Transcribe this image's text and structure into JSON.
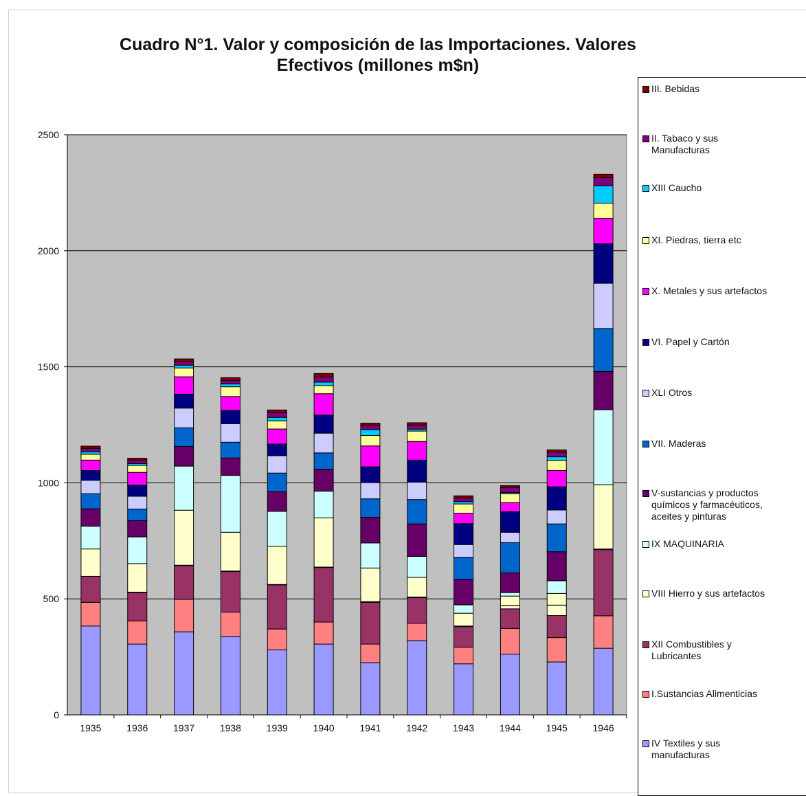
{
  "chart_data": {
    "type": "bar",
    "stacked": true,
    "title": "Cuadro N°1. Valor y composición de las Importaciones. Valores Efectivos (millones m$n)",
    "title_lines": [
      "Cuadro N°1. Valor y composición de las Importaciones. Valores",
      "Efectivos (millones m$n)"
    ],
    "categories": [
      "1935",
      "1936",
      "1937",
      "1938",
      "1939",
      "1940",
      "1941",
      "1942",
      "1943",
      "1944",
      "1945",
      "1946"
    ],
    "ylim": [
      0,
      2500
    ],
    "yticks": [
      "0",
      "500",
      "1000",
      "1500",
      "2000",
      "2500"
    ],
    "grid": true,
    "legend_placement": "right",
    "plot_background": "#c0c0c0",
    "series": [
      {
        "name": "IV Textiles y sus\nmanufacturas",
        "color": "#9999ff",
        "values": [
          383,
          305,
          358,
          338,
          280,
          305,
          225,
          320,
          220,
          262,
          228,
          287
        ]
      },
      {
        "name": "I.Sustancias Alimenticias",
        "color": "#ff8080",
        "values": [
          102,
          100,
          140,
          105,
          90,
          95,
          80,
          75,
          72,
          110,
          105,
          140
        ]
      },
      {
        "name": "XII Combustibles y\nLubricantes",
        "color": "#993366",
        "values": [
          112,
          122,
          145,
          175,
          190,
          235,
          180,
          110,
          88,
          85,
          95,
          285
        ]
      },
      {
        "name": "VIII Hierro y sus artefactos",
        "color": "#ffffcc",
        "values": [
          0,
          2,
          2,
          2,
          2,
          2,
          3,
          3,
          3,
          15,
          45,
          3
        ]
      },
      {
        "name": "IX MAQUINARIA",
        "color": "#ffffcc",
        "values": [
          118,
          123,
          237,
          167,
          165,
          212,
          145,
          85,
          55,
          40,
          50,
          277
        ]
      },
      {
        "name": "V-sustancias y productos\nquímicos y farmacéuticos,\naceites y pinturas",
        "color": "#ccffff",
        "values": [
          98,
          115,
          190,
          245,
          150,
          115,
          108,
          90,
          36,
          15,
          55,
          323
        ]
      },
      {
        "name": "VII. Maderas",
        "color": "#660066",
        "values": [
          75,
          70,
          85,
          75,
          85,
          95,
          110,
          140,
          110,
          85,
          125,
          165
        ]
      },
      {
        "name": "XLI Otros",
        "color": "#0066cc",
        "values": [
          65,
          50,
          80,
          68,
          80,
          70,
          80,
          105,
          95,
          130,
          120,
          185
        ]
      },
      {
        "name": "VI. Papel y Cartón",
        "color": "#ccccff",
        "values": [
          58,
          55,
          85,
          80,
          75,
          85,
          70,
          75,
          55,
          45,
          60,
          195
        ]
      },
      {
        "name": "X. Metales y sus artefactos",
        "color": "#000080",
        "values": [
          42,
          48,
          60,
          57,
          50,
          78,
          68,
          95,
          90,
          88,
          100,
          170
        ]
      },
      {
        "name": "XI. Piedras, tierra etc",
        "color": "#ff00ff",
        "values": [
          45,
          55,
          75,
          60,
          65,
          92,
          90,
          80,
          45,
          40,
          70,
          110
        ]
      },
      {
        "name": "XIII Caucho",
        "color": "#ffff99",
        "values": [
          25,
          30,
          38,
          42,
          35,
          35,
          45,
          45,
          40,
          38,
          44,
          65
        ]
      },
      {
        "name": "II. Tabaco y sus\nManufacturas",
        "color": "#00ccff",
        "values": [
          10,
          8,
          12,
          12,
          15,
          15,
          25,
          8,
          10,
          5,
          15,
          75
        ]
      },
      {
        "name": "III. Bebidas",
        "color": "#800080",
        "values": [
          15,
          15,
          15,
          15,
          20,
          22,
          18,
          18,
          15,
          22,
          20,
          35
        ]
      },
      {
        "name": "",
        "color": "#800000",
        "values": [
          10,
          8,
          12,
          12,
          12,
          15,
          10,
          10,
          10,
          8,
          10,
          15
        ]
      }
    ],
    "legend": [
      {
        "label": "III. Bebidas",
        "color": "#800000"
      },
      {
        "label": "II. Tabaco y sus\nManufacturas",
        "color": "#800080"
      },
      {
        "label": "XIII Caucho",
        "color": "#00ccff"
      },
      {
        "label": "XI. Piedras, tierra etc",
        "color": "#ffff99"
      },
      {
        "label": "X. Metales y sus artefactos",
        "color": "#ff00ff"
      },
      {
        "label": "VI. Papel y Cartón",
        "color": "#000080"
      },
      {
        "label": "XLI Otros",
        "color": "#ccccff"
      },
      {
        "label": "VII. Maderas",
        "color": "#0066cc"
      },
      {
        "label": "V-sustancias y productos\nquímicos y farmacéuticos,\naceites y pinturas",
        "color": "#660066"
      },
      {
        "label": "IX MAQUINARIA",
        "color": "#ccffff"
      },
      {
        "label": "VIII Hierro y sus artefactos",
        "color": "#ffffcc"
      },
      {
        "label": "XII Combustibles y\nLubricantes",
        "color": "#993366"
      },
      {
        "label": "I.Sustancias Alimenticias",
        "color": "#ff8080"
      },
      {
        "label": "IV Textiles y sus\nmanufacturas",
        "color": "#9999ff"
      }
    ]
  }
}
